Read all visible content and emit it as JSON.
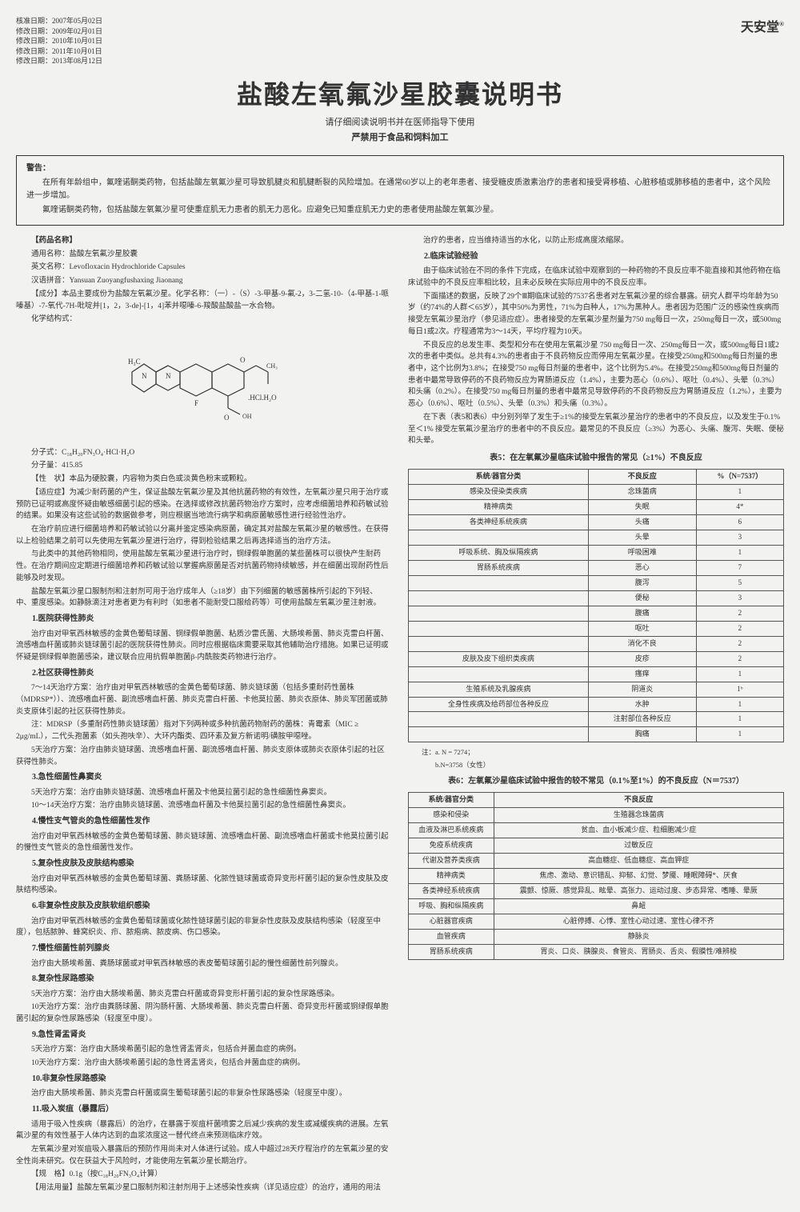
{
  "dates": {
    "d1": "核准日期：2007年05月02日",
    "d2": "修改日期：2009年02月01日",
    "d3": "修改日期：2010年10月01日",
    "d4": "修改日期：2011年10月01日",
    "d5": "修改日期：2013年08月12日"
  },
  "brand": "天安堂",
  "brand_r": "®",
  "title": "盐酸左氧氟沙星胶囊说明书",
  "subtitle": "请仔细阅读说明书并在医师指导下使用",
  "subtitle2": "严禁用于食品和饲料加工",
  "warn": {
    "label": "警告：",
    "p1": "在所有年龄组中，氟喹诺酮类药物，包括盐酸左氧氟沙星可导致肌腱炎和肌腱断裂的风险增加。在通常60岁以上的老年患者、接受糖皮质激素治疗的患者和接受肾移植、心脏移植或肺移植的患者中，这个风险进一步增加。",
    "p2": "氟喹诺酮类药物，包括盐酸左氧氟沙星可使重症肌无力患者的肌无力恶化。应避免已知重症肌无力史的患者使用盐酸左氧氟沙星。"
  },
  "left": {
    "s1": "【药品名称】",
    "s1a": "通用名称：盐酸左氧氟沙星胶囊",
    "s1b": "英文名称：Levofloxacin Hydrochloride Capsules",
    "s1c": "汉语拼音：Yansuan Zuoyangfushaxing Jiaonang",
    "s2": "【成分】本品主要成份为盐酸左氧氟沙星。化学名称：（一）-（S）-3-甲基-9-氟-2，3-二氢-10-（4-甲基-1-哌嗪基）-7-氧代-7H-吡啶并[1，2，3-de]-[1，4]苯并噁嗪-6-羧酸盐酸盐一水合物。",
    "s2a": "化学结构式：",
    "mf": "分子式：C₁₈H₂₀FN₃O₄·HCl·H₂O",
    "mw": "分子量：415.85",
    "s3": "【性　状】本品为硬胶囊，内容物为类白色或淡黄色粉末或颗粒。",
    "s4": "【适应症】为减少耐药菌的产生，保证盐酸左氧氟沙星及其他抗菌药物的有效性，左氧氟沙星只用于治疗或预防已证明或高度怀疑由敏感细菌引起的感染。在选择或修改抗菌药物治疗方案时，应考虑细菌培养和药敏试验的结果。如果没有这些试验的数据做参考，则应根据当地流行病学和病原菌敏感性进行经验性治疗。",
    "p1": "在治疗前应进行细菌培养和药敏试验以分离并鉴定感染病原菌，确定其对盐酸左氧氟沙星的敏感性。在获得以上检验结果之前可以先使用左氧氟沙星进行治疗，得到检验结果之后再选择适当的治疗方法。",
    "p2": "与此类中的其他药物相同，使用盐酸左氧氟沙星进行治疗时，铜绿假单胞菌的某些菌株可以很快产生耐药性。在治疗期间应定期进行细菌培养和药敏试验以掌握病原菌是否对抗菌药物持续敏感，并在细菌出现耐药性后能够及时发现。",
    "p3": "盐酸左氧氟沙星口服制剂和注射剂可用于治疗成年人（≥18岁）由下列细菌的敏感菌株所引起的下列轻、中、重度感染。如静脉滴注对患者更为有利时（如患者不能耐受口服给药等）可使用盐酸左氧氟沙星注射液。",
    "h1": "1.医院获得性肺炎",
    "p4": "治疗由对甲氧西林敏感的金黄色葡萄球菌、铜绿假单胞菌、粘质沙雷氏菌、大肠埃希菌、肺炎克雷白杆菌、流感嗜血杆菌或肺炎链球菌引起的医院获得性肺炎。同时应根据临床需要采取其他辅助治疗措施。如果已证明或怀疑是铜绿假单胞菌感染，建议联合应用抗假单胞菌β-内酰胺类药物进行治疗。",
    "h2": "2.社区获得性肺炎",
    "p5": "7～14天治疗方案：治疗由对甲氧西林敏感的金黄色葡萄球菌、肺炎链球菌（包括多重耐药性菌株（MDRSP*））、流感嗜血杆菌、副流感嗜血杆菌、肺炎克雷白杆菌、卡他莫拉菌、肺炎衣原体、肺炎军团菌或肺炎支原体引起的社区获得性肺炎。",
    "p6": "注：MDRSP（多重耐药性肺炎链球菌）指对下列两种或多种抗菌药物耐药的菌株：青霉素（MIC ≥ 2μg/mL），二代头孢菌素（如头孢呋辛）、大环内酯类、四环素及复方新诺明/磺胺甲噁唑。",
    "p7": "5天治疗方案：治疗由肺炎链球菌、流感嗜血杆菌、副流感嗜血杆菌、肺炎支原体或肺炎衣原体引起的社区获得性肺炎。",
    "h3": "3.急性细菌性鼻窦炎",
    "p8": "5天治疗方案：治疗由肺炎链球菌、流感嗜血杆菌及卡他莫拉菌引起的急性细菌性鼻窦炎。",
    "p9": "10～14天治疗方案：治疗由肺炎链球菌、流感嗜血杆菌及卡他莫拉菌引起的急性细菌性鼻窦炎。",
    "h4": "4.慢性支气管炎的急性细菌性发作",
    "p10": "治疗由对甲氧西林敏感的金黄色葡萄球菌、肺炎链球菌、流感嗜血杆菌、副流感嗜血杆菌或卡他莫拉菌引起的慢性支气管炎的急性细菌性发作。",
    "h5": "5.复杂性皮肤及皮肤结构感染",
    "p11": "治疗由对甲氧西林敏感的金黄色葡萄球菌、粪肠球菌、化脓性链球菌或奇异变形杆菌引起的复杂性皮肤及皮肤结构感染。",
    "h6": "6.非复杂性皮肤及皮肤软组织感染",
    "p12": "治疗由对甲氧西林敏感的金黄色葡萄球菌或化脓性链球菌引起的非复杂性皮肤及皮肤结构感染（轻度至中度），包括脓肿、蜂窝织炎、疖、脓疱病、脓皮病、伤口感染。",
    "h7": "7.慢性细菌性前列腺炎",
    "p13": "治疗由大肠埃希菌、粪肠球菌或对甲氧西林敏感的表皮葡萄球菌引起的慢性细菌性前列腺炎。",
    "h8": "8.复杂性尿路感染",
    "p14": "5天治疗方案：治疗由大肠埃希菌、肺炎克雷白杆菌或奇异变形杆菌引起的复杂性尿路感染。",
    "p15": "10天治疗方案：治疗由粪肠球菌、阴沟肠杆菌、大肠埃希菌、肺炎克雷白杆菌、奇异变形杆菌或铜绿假单胞菌引起的复杂性尿路感染（轻度至中度）。",
    "h9": "9.急性肾盂肾炎",
    "p16": "5天治疗方案：治疗由大肠埃希菌引起的急性肾盂肾炎，包括合并菌血症的病例。",
    "p17": "10天治疗方案：治疗由大肠埃希菌引起的急性肾盂肾炎，包括合并菌血症的病例。",
    "h10": "10.非复杂性尿路感染",
    "p18": "治疗由大肠埃希菌、肺炎克雷白杆菌或腐生葡萄球菌引起的非复杂性尿路感染（轻度至中度）。",
    "h11": "11.吸入炭疽（暴露后）",
    "p19": "适用于吸入性疾病（暴露后）的治疗，在暴露于炭疽杆菌喷雾之后减少疾病的发生或减缓疾病的进展。左氧氟沙星的有效性基于人体内达到的血浆浓度这一替代终点来预测临床疗效。",
    "p20": "左氧氟沙星对炭疽吸入暴露后的预防作用尚未对人体进行试验。成人中超过28天疗程治疗的左氧氟沙星的安全性尚未研究。仅在获益大于风险时，才能使用左氧氟沙星长期治疗。",
    "s5": "【规　格】0.1g（按C₁₈H₂₀FN₃O₄计算）",
    "s6": "【用法用量】盐酸左氧氟沙星口服制剂和注射剂用于上述感染性疾病（详见适应症）的治疗，通用的用法"
  },
  "right": {
    "p1": "治疗的患者，应当维持适当的水化，以防止形成高度浓缩尿。",
    "h1": "2.临床试验经验",
    "p2": "由于临床试验在不同的条件下完成，在临床试验中观察到的一种药物的不良反应率不能直接和其他药物在临床试验中的不良反应率相比较，且未必反映在实际应用中的不良反应率。",
    "p3": "下面描述的数据，反映了29个Ⅲ期临床试验的7537名患者对左氧氟沙星的综合暴露。研究人群平均年龄为50岁（约74%的人群＜65岁），其中50%为男性，71%为白种人，17%为黑种人。患者因为范围广泛的感染性疾病而接受左氧氟沙星治疗（参见适应症）。患者接受的左氧氟沙星剂量为750 mg每日一次，250mg每日一次，或500mg每日1或2次。疗程通常为3～14天，平均疗程为10天。",
    "p4": "不良反应的总发生率、类型和分布在使用左氧氟沙星 750 mg每日一次、250mg每日一次，或500mg每日1或2次的患者中类似。总共有4.3%的患者由于不良药物反应而停用左氧氟沙星。在接受250mg和500mg每日剂量的患者中，这个比例为3.8%；在接受750 mg每日剂量的患者中，这个比例为5.4%。在接受250mg和500mg每日剂量的患者中最常导致停药的不良药物反应为胃肠道反应（1.4%），主要为恶心（0.6%）、呕吐（0.4%）、头晕（0.3%）和头痛（0.2%）。在接受750 mg每日剂量的患者中最常见导致停药的不良药物反应为胃肠道反应（1.2%），主要为恶心（0.6%）、呕吐（0.5%）、头晕（0.3%）和头痛（0.3%）。",
    "p5": "在下表（表5和表6）中分别列举了发生于≥1%的接受左氧氟沙星治疗的患者中的不良反应，以及发生于0.1%至＜1% 接受左氧氟沙星治疗的患者中的不良反应。最常见的不良反应（≥3%）为恶心、头痛、腹泻、失眠、便秘和头晕。",
    "tbl5": "表5：在左氧氟沙星临床试验中报告的常见（≥1%）不良反应",
    "t5h1": "系统/器官分类",
    "t5h2": "不良反应",
    "t5h3": "%（N=7537）",
    "t5": [
      [
        "感染及侵染类疾病",
        "念珠菌病",
        "1"
      ],
      [
        "精神病类",
        "失眠",
        "4*"
      ],
      [
        "各类神经系统疾病",
        "头痛",
        "6"
      ],
      [
        "",
        "头晕",
        "3"
      ],
      [
        "呼吸系统、胸及纵隔疾病",
        "呼吸困难",
        "1"
      ],
      [
        "胃肠系统疾病",
        "恶心",
        "7"
      ],
      [
        "",
        "腹泻",
        "5"
      ],
      [
        "",
        "便秘",
        "3"
      ],
      [
        "",
        "腹痛",
        "2"
      ],
      [
        "",
        "呕吐",
        "2"
      ],
      [
        "",
        "消化不良",
        "2"
      ],
      [
        "皮肤及皮下组织类疾病",
        "皮疹",
        "2"
      ],
      [
        "",
        "瘙痒",
        "1"
      ],
      [
        "生殖系统及乳腺疾病",
        "阴道炎",
        "1ᵇ"
      ],
      [
        "全身性疾病及给药部位各种反应",
        "水肿",
        "1"
      ],
      [
        "",
        "注射部位各种反应",
        "1"
      ],
      [
        "",
        "胸痛",
        "1"
      ]
    ],
    "note1": "注：a. N = 7274；",
    "note2": "b.N=3758（女性）",
    "tbl6": "表6：左氧氟沙星临床试验中报告的较不常见（0.1%至1%）的不良反应（N＝7537）",
    "t6h1": "系统/器官分类",
    "t6h2": "不良反应",
    "t6": [
      [
        "感染和侵染",
        "生殖器念珠菌病"
      ],
      [
        "血液及淋巴系统疾病",
        "贫血、血小板减少症、粒细胞减少症"
      ],
      [
        "免疫系统疾病",
        "过敏反应"
      ],
      [
        "代谢及营养类疾病",
        "高血糖症、低血糖症、高血钾症"
      ],
      [
        "精神病类",
        "焦虑、激动、意识错乱、抑郁、幻觉、梦魇、睡眠障碍*、厌食"
      ],
      [
        "各类神经系统疾病",
        "震颤、惊厥、感觉异乱、眩晕、高张力、运动过度、步态异常、嗜睡、晕厥"
      ],
      [
        "呼吸、胸和纵隔疾病",
        "鼻衄"
      ],
      [
        "心脏器官疾病",
        "心脏停搏、心悸、室性心动过速、室性心律不齐"
      ],
      [
        "血管疾病",
        "静脉炎"
      ],
      [
        "胃肠系统疾病",
        "胃炎、口炎、胰腺炎、食管炎、胃肠炎、舌炎、假膜性/难辨梭"
      ]
    ]
  }
}
